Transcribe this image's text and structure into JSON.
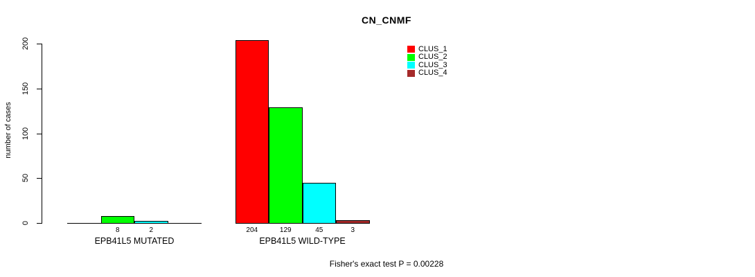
{
  "chart_data": {
    "type": "bar",
    "title": "CN_CNMF",
    "ylabel": "number of cases",
    "xlabel": "",
    "ylim": [
      0,
      200
    ],
    "yticks": [
      0,
      50,
      100,
      150,
      200
    ],
    "grid": false,
    "legend_position": "top-right",
    "categories": [
      "EPB41L5 MUTATED",
      "EPB41L5 WILD-TYPE"
    ],
    "series": [
      {
        "name": "CLUS_1",
        "color": "#ff0000",
        "values": [
          0,
          204
        ]
      },
      {
        "name": "CLUS_2",
        "color": "#00ff00",
        "values": [
          8,
          129
        ]
      },
      {
        "name": "CLUS_3",
        "color": "#00ffff",
        "values": [
          2,
          45
        ]
      },
      {
        "name": "CLUS_4",
        "color": "#a52a2a",
        "values": [
          0,
          3
        ]
      }
    ],
    "bar_value_labels": [
      [
        "",
        "8",
        "2",
        ""
      ],
      [
        "204",
        "129",
        "45",
        "3"
      ]
    ],
    "footnote": "Fisher's exact test P = 0.00228"
  },
  "colors": {
    "background": "#ffffff",
    "text": "#000000",
    "axis": "#000000"
  }
}
